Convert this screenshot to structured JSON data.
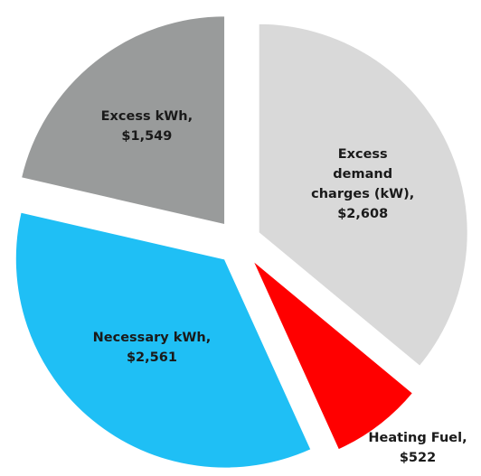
{
  "chart_data": {
    "type": "pie",
    "categories": [
      "Excess demand charges (kW),",
      "Heating Fuel,",
      "Necessary kWh,",
      "Excess kWh,"
    ],
    "values": [
      2608,
      522,
      2561,
      1549
    ],
    "value_labels": [
      "$2,608",
      "$522",
      "$2,561",
      "$1,549"
    ],
    "colors": [
      "#d9d9d9",
      "#ff0000",
      "#1fbff5",
      "#999b9b"
    ]
  }
}
